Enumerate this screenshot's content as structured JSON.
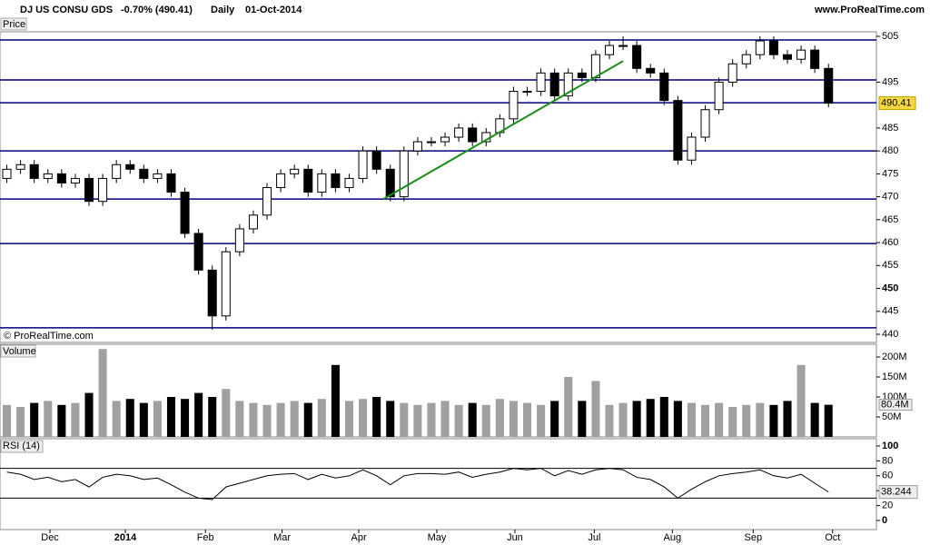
{
  "chart_data": {
    "type": "candlestick",
    "title": "DJ US CONSU GDS",
    "change": "-0.70% (490.41)",
    "period": "Daily",
    "date": "01-Oct-2014",
    "source": "www.ProRealTime.com",
    "price_label": "Price",
    "copyright": "© ProRealTime.com",
    "volume_label": "Volume",
    "rsi_label": "RSI (14)",
    "last_price": 490.41,
    "last_volume": {
      "value": 80.4,
      "label": "80.4M"
    },
    "last_rsi": 38.244,
    "open": [
      474,
      476,
      477,
      474,
      475,
      473,
      474,
      469,
      474,
      477,
      476,
      474,
      475,
      471,
      462,
      454,
      444,
      458,
      463,
      466,
      472,
      475,
      476,
      471,
      475,
      472,
      474,
      480,
      476,
      470,
      480,
      482,
      482,
      483,
      485,
      482,
      484,
      487,
      493,
      493,
      497,
      492,
      497,
      496,
      501,
      503,
      503,
      498,
      497,
      491,
      478,
      483,
      489,
      495,
      499,
      501,
      504,
      501,
      500,
      502,
      498
    ],
    "high": [
      477,
      478,
      478,
      476,
      476,
      475,
      475,
      475,
      478,
      478,
      477,
      476,
      476,
      472,
      463,
      455,
      459,
      464,
      467,
      473,
      476,
      477,
      477,
      476,
      476,
      475,
      481,
      481,
      477,
      481,
      483,
      483,
      484,
      486,
      486,
      485,
      488,
      494,
      494,
      498,
      498,
      498,
      498,
      502,
      504,
      505,
      504,
      499,
      498,
      492,
      484,
      490,
      496,
      500,
      502,
      505,
      505,
      502,
      503,
      503,
      499
    ],
    "low": [
      473,
      475,
      473,
      473,
      472,
      472,
      468,
      468,
      473,
      475,
      473,
      473,
      470,
      461,
      453,
      441,
      443,
      457,
      462,
      465,
      471,
      474,
      470,
      470,
      471,
      471,
      473,
      475,
      469,
      469,
      479,
      481,
      481,
      482,
      481,
      481,
      483,
      486,
      492,
      492,
      491,
      491,
      495,
      495,
      500,
      502,
      497,
      496,
      490,
      477,
      477,
      482,
      488,
      494,
      498,
      500,
      500,
      499,
      499,
      497,
      489.5
    ],
    "close": [
      476,
      477,
      474,
      475,
      473,
      474,
      469,
      474,
      477,
      476,
      474,
      475,
      471,
      462,
      454,
      444,
      458,
      463,
      466,
      472,
      475,
      476,
      471,
      475,
      472,
      474,
      480,
      476,
      470,
      480,
      482,
      482,
      483,
      485,
      482,
      484,
      487,
      493,
      493,
      497,
      492,
      497,
      496,
      501,
      503,
      503,
      498,
      497,
      491,
      478,
      483,
      489,
      495,
      499,
      501,
      504,
      501,
      500,
      502,
      498,
      490.41
    ],
    "volume": [
      80,
      75,
      85,
      90,
      80,
      85,
      110,
      220,
      90,
      95,
      85,
      90,
      100,
      95,
      110,
      100,
      120,
      90,
      85,
      80,
      85,
      90,
      85,
      95,
      180,
      90,
      95,
      100,
      90,
      85,
      80,
      85,
      90,
      80,
      85,
      80,
      95,
      90,
      85,
      80,
      90,
      150,
      90,
      140,
      80,
      85,
      90,
      95,
      100,
      90,
      85,
      80,
      85,
      75,
      80,
      85,
      80,
      90,
      180,
      85,
      80.4
    ],
    "rsi": [
      65,
      62,
      55,
      58,
      52,
      55,
      45,
      58,
      62,
      60,
      55,
      57,
      48,
      38,
      30,
      28,
      45,
      50,
      55,
      60,
      62,
      63,
      55,
      62,
      57,
      60,
      68,
      60,
      48,
      60,
      63,
      63,
      62,
      65,
      58,
      62,
      65,
      70,
      68,
      70,
      60,
      67,
      62,
      68,
      70,
      68,
      58,
      55,
      45,
      30,
      42,
      52,
      60,
      63,
      65,
      68,
      60,
      57,
      62,
      50,
      38.244
    ],
    "levels": [
      504.2,
      495.5,
      490.5,
      480,
      469.5,
      459.8,
      441.4
    ],
    "level_color": "#000080",
    "trendline": {
      "x": [
        28,
        45.5
      ],
      "y": [
        469.5,
        499.6
      ],
      "color": "#1a8c1a"
    },
    "up_color": "#ffffff",
    "down_color": "#000000",
    "volume_up_color": "#a0a0a0",
    "volume_down_color": "#000000",
    "rsi_color": "#000000",
    "xlim": [
      0,
      64
    ],
    "xticks": [
      {
        "value": 3.65,
        "label": "Dec"
      },
      {
        "value": 9.15,
        "label": "2014"
      },
      {
        "value": 15,
        "label": "Feb"
      },
      {
        "value": 20.6,
        "label": "Mar"
      },
      {
        "value": 26.2,
        "label": "Apr"
      },
      {
        "value": 31.9,
        "label": "May"
      },
      {
        "value": 37.6,
        "label": "Jun"
      },
      {
        "value": 43.4,
        "label": "Jul"
      },
      {
        "value": 49.1,
        "label": "Aug"
      },
      {
        "value": 55,
        "label": "Sep"
      },
      {
        "value": 60.8,
        "label": "Oct"
      }
    ],
    "ylim": [
      440,
      505
    ],
    "yticks": [
      505,
      495,
      485,
      480,
      475,
      470,
      465,
      460,
      455,
      450,
      445,
      440
    ],
    "vlim": [
      0,
      200
    ],
    "vticks": [
      {
        "value": 200,
        "label": "200M"
      },
      {
        "value": 150,
        "label": "150M"
      },
      {
        "value": 100,
        "label": "100M"
      },
      {
        "value": 50,
        "label": "50M"
      }
    ],
    "rlim": [
      0,
      100
    ],
    "rticks": [
      100,
      80,
      60,
      40,
      20,
      0
    ],
    "rlevels": [
      70,
      30
    ]
  }
}
